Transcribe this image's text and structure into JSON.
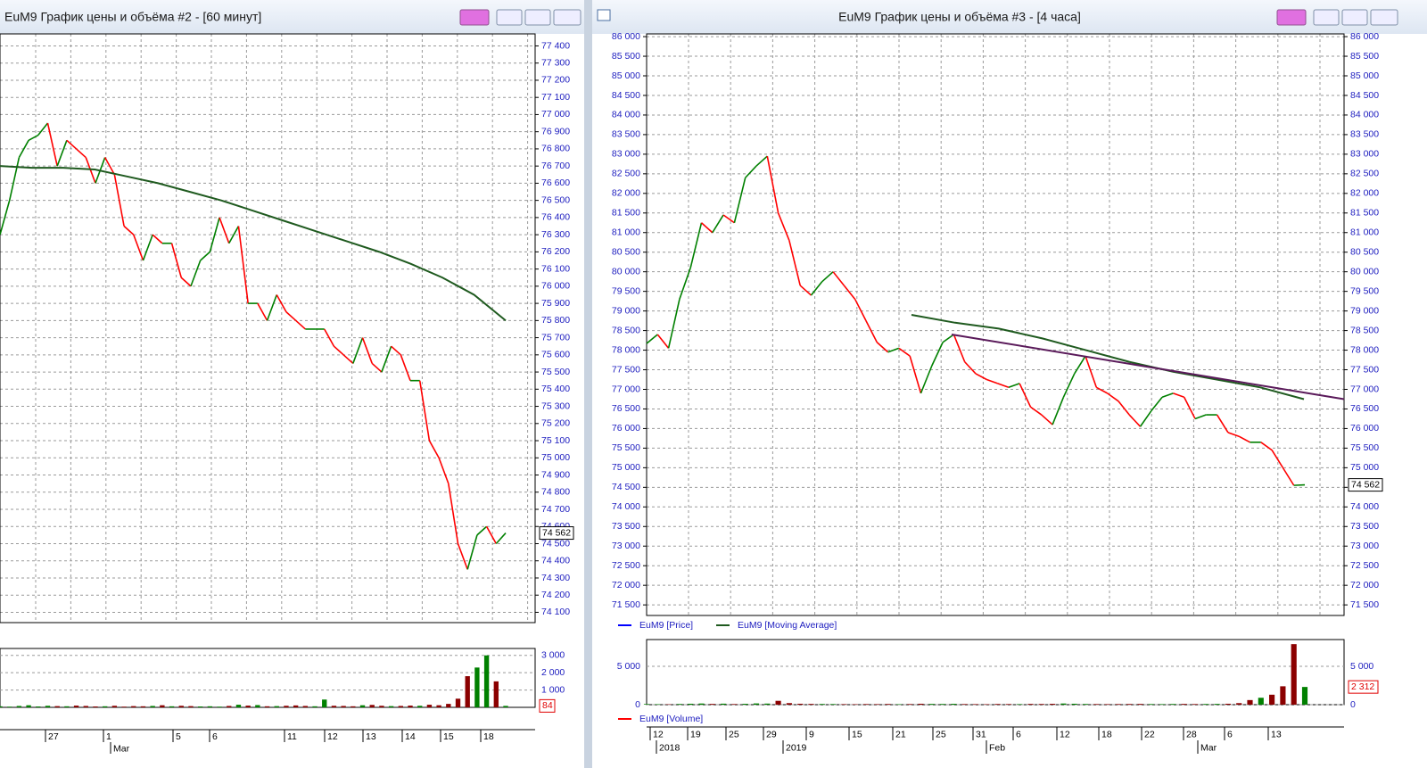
{
  "windows": [
    {
      "title": "EuM9 График цены и объёма #2 - [60 минут]",
      "price_axis": {
        "ylim": [
          74040,
          77470
        ],
        "ticks": [
          {
            "value": 77400,
            "label": "77 400"
          },
          {
            "value": 77300,
            "label": "77 300"
          },
          {
            "value": 77200,
            "label": "77 200"
          },
          {
            "value": 77100,
            "label": "77 100"
          },
          {
            "value": 77000,
            "label": "77 000"
          },
          {
            "value": 76900,
            "label": "76 900"
          },
          {
            "value": 76800,
            "label": "76 800"
          },
          {
            "value": 76700,
            "label": "76 700"
          },
          {
            "value": 76600,
            "label": "76 600"
          },
          {
            "value": 76500,
            "label": "76 500"
          },
          {
            "value": 76400,
            "label": "76 400"
          },
          {
            "value": 76300,
            "label": "76 300"
          },
          {
            "value": 76200,
            "label": "76 200"
          },
          {
            "value": 76100,
            "label": "76 100"
          },
          {
            "value": 76000,
            "label": "76 000"
          },
          {
            "value": 75900,
            "label": "75 900"
          },
          {
            "value": 75800,
            "label": "75 800"
          },
          {
            "value": 75700,
            "label": "75 700"
          },
          {
            "value": 75600,
            "label": "75 600"
          },
          {
            "value": 75500,
            "label": "75 500"
          },
          {
            "value": 75400,
            "label": "75 400"
          },
          {
            "value": 75300,
            "label": "75 300"
          },
          {
            "value": 75200,
            "label": "75 200"
          },
          {
            "value": 75100,
            "label": "75 100"
          },
          {
            "value": 75000,
            "label": "75 000"
          },
          {
            "value": 74900,
            "label": "74 900"
          },
          {
            "value": 74800,
            "label": "74 800"
          },
          {
            "value": 74700,
            "label": "74 700"
          },
          {
            "value": 74600,
            "label": "74 600"
          },
          {
            "value": 74500,
            "label": "74 500"
          },
          {
            "value": 74400,
            "label": "74 400"
          },
          {
            "value": 74300,
            "label": "74 300"
          },
          {
            "value": 74200,
            "label": "74 200"
          },
          {
            "value": 74100,
            "label": "74 100"
          }
        ]
      },
      "price": {
        "up_color": "#008000",
        "down_color": "#ff0000",
        "values": [
          76300,
          76500,
          76750,
          76850,
          76880,
          76950,
          76700,
          76850,
          76800,
          76750,
          76600,
          76750,
          76650,
          76350,
          76300,
          76150,
          76300,
          76250,
          76250,
          76050,
          76000,
          76150,
          76200,
          76400,
          76250,
          76350,
          75900,
          75900,
          75800,
          75950,
          75850,
          75800,
          75750,
          75750,
          75750,
          75650,
          75600,
          75550,
          75700,
          75550,
          75500,
          75650,
          75600,
          75450,
          75450,
          75100,
          75000,
          74850,
          74500,
          74350,
          74550,
          74600,
          74500,
          74562
        ]
      },
      "moving_average": {
        "color": "#1f5a1f",
        "values": [
          76700,
          76690,
          76690,
          76680,
          76640,
          76600,
          76550,
          76500,
          76440,
          76380,
          76320,
          76260,
          76200,
          76130,
          76050,
          75950,
          75800
        ]
      },
      "last_price": {
        "value": 74562,
        "label": "74 562"
      },
      "volume": {
        "ylim": [
          0,
          3400
        ],
        "up_color": "#008000",
        "down_color": "#8b0000",
        "ticks": [
          {
            "value": 3000,
            "label": "3 000"
          },
          {
            "value": 2000,
            "label": "2 000"
          },
          {
            "value": 1000,
            "label": "1 000"
          }
        ],
        "values": [
          60,
          40,
          80,
          120,
          50,
          90,
          70,
          60,
          100,
          80,
          50,
          60,
          90,
          40,
          70,
          60,
          80,
          120,
          60,
          90,
          70,
          50,
          60,
          40,
          80,
          150,
          100,
          130,
          60,
          70,
          90,
          110,
          80,
          60,
          450,
          90,
          80,
          60,
          120,
          140,
          90,
          70,
          80,
          100,
          90,
          150,
          120,
          200,
          500,
          1800,
          2300,
          3000,
          1500,
          84
        ],
        "last": 84
      },
      "dates": [
        [
          "27",
          "1",
          "5",
          "6",
          "11",
          "12",
          "13",
          "14",
          "15",
          "18"
        ],
        [
          "Mar"
        ]
      ]
    },
    {
      "title": "EuM9 График цены и объёма #3 - [4 часа]",
      "price_axis": {
        "ylim": [
          71230,
          86070
        ],
        "ticks": [
          {
            "value": 86000,
            "label": "86 000"
          },
          {
            "value": 85500,
            "label": "85 500"
          },
          {
            "value": 85000,
            "label": "85 000"
          },
          {
            "value": 84500,
            "label": "84 500"
          },
          {
            "value": 84000,
            "label": "84 000"
          },
          {
            "value": 83500,
            "label": "83 500"
          },
          {
            "value": 83000,
            "label": "83 000"
          },
          {
            "value": 82500,
            "label": "82 500"
          },
          {
            "value": 82000,
            "label": "82 000"
          },
          {
            "value": 81500,
            "label": "81 500"
          },
          {
            "value": 81000,
            "label": "81 000"
          },
          {
            "value": 80500,
            "label": "80 500"
          },
          {
            "value": 80000,
            "label": "80 000"
          },
          {
            "value": 79500,
            "label": "79 500"
          },
          {
            "value": 79000,
            "label": "79 000"
          },
          {
            "value": 78500,
            "label": "78 500"
          },
          {
            "value": 78000,
            "label": "78 000"
          },
          {
            "value": 77500,
            "label": "77 500"
          },
          {
            "value": 77000,
            "label": "77 000"
          },
          {
            "value": 76500,
            "label": "76 500"
          },
          {
            "value": 76000,
            "label": "76 000"
          },
          {
            "value": 75500,
            "label": "75 500"
          },
          {
            "value": 75000,
            "label": "75 000"
          },
          {
            "value": 74500,
            "label": "74 500"
          },
          {
            "value": 74000,
            "label": "74 000"
          },
          {
            "value": 73500,
            "label": "73 500"
          },
          {
            "value": 73000,
            "label": "73 000"
          },
          {
            "value": 72500,
            "label": "72 500"
          },
          {
            "value": 72000,
            "label": "72 000"
          },
          {
            "value": 71500,
            "label": "71 500"
          }
        ]
      },
      "price": {
        "up_color": "#008000",
        "down_color": "#ff0000",
        "values": [
          78170,
          78400,
          78050,
          79300,
          80100,
          81250,
          81000,
          81450,
          81250,
          82400,
          82700,
          82950,
          81500,
          80800,
          79650,
          79400,
          79750,
          80000,
          79650,
          79300,
          78750,
          78200,
          77950,
          78050,
          77850,
          76900,
          77600,
          78200,
          78400,
          77700,
          77400,
          77250,
          77150,
          77050,
          77150,
          76550,
          76350,
          76100,
          76800,
          77400,
          77850,
          77050,
          76900,
          76700,
          76350,
          76050,
          76450,
          76800,
          76900,
          76800,
          76250,
          76350,
          76350,
          75900,
          75800,
          75650,
          75650,
          75450,
          75000,
          74550,
          74562
        ]
      },
      "moving_average": {
        "color": "#1f5a1f",
        "values": [
          78900,
          78700,
          78550,
          78300,
          78000,
          77700,
          77450,
          77250,
          77050,
          76750
        ]
      },
      "trendline": {
        "color": "#5a1a5a",
        "values": [
          78400,
          76750
        ]
      },
      "last_price": {
        "value": 74562,
        "label": "74 562"
      },
      "legend": [
        {
          "name": "EuM9 [Price]",
          "color": "#0000ff"
        },
        {
          "name": "EuM9 [Moving Average]",
          "color": "#1f5a1f"
        }
      ],
      "volume": {
        "ylim": [
          0,
          8500
        ],
        "up_color": "#008000",
        "down_color": "#8b0000",
        "ticks": [
          {
            "value": 5000,
            "label": "5 000"
          },
          0
        ],
        "values": [
          80,
          60,
          50,
          90,
          120,
          150,
          100,
          130,
          80,
          110,
          160,
          140,
          500,
          200,
          120,
          100,
          90,
          80,
          70,
          60,
          80,
          70,
          90,
          60,
          80,
          120,
          100,
          90,
          110,
          80,
          70,
          60,
          90,
          80,
          70,
          100,
          90,
          110,
          150,
          120,
          90,
          80,
          70,
          80,
          90,
          100,
          80,
          70,
          90,
          100,
          80,
          90,
          100,
          120,
          200,
          600,
          900,
          1300,
          2400,
          7900,
          2312
        ],
        "last": {
          "value": 2312,
          "label": "2 312"
        },
        "legend": {
          "name": "EuM9 [Volume]",
          "color": "#ff0000"
        }
      },
      "dates": [
        [
          "12",
          "19",
          "25",
          "29",
          "9",
          "15",
          "21",
          "25",
          "31",
          "6",
          "12",
          "18",
          "22",
          "28",
          "6",
          "13"
        ],
        [
          "2018",
          "2019",
          "Feb",
          "Mar"
        ]
      ]
    }
  ]
}
